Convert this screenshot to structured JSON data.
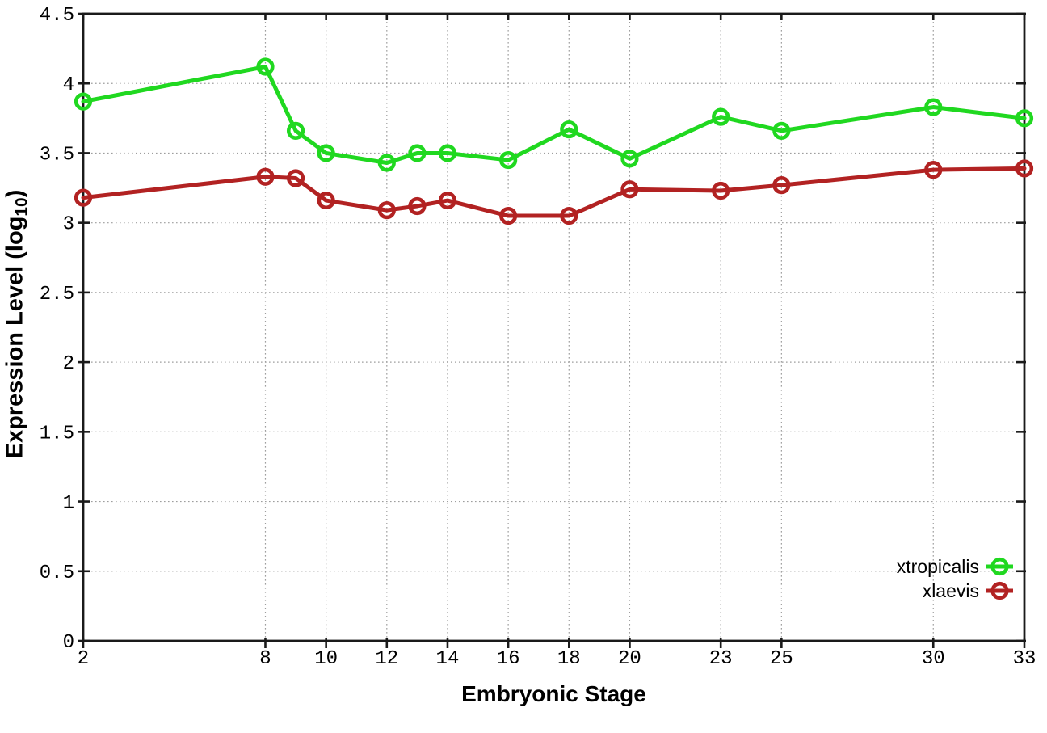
{
  "page": {
    "background": "#ffffff"
  },
  "chart_data": {
    "type": "line",
    "title": "",
    "xlabel": "Embryonic Stage",
    "ylabel": "Expression Level (log10)",
    "ylabel_parts": {
      "main": "Expression Level (log",
      "sub": "10",
      "close": ")"
    },
    "xlim": [
      2,
      33
    ],
    "ylim": [
      0,
      4.5
    ],
    "x": [
      2,
      8,
      9,
      10,
      12,
      13,
      14,
      16,
      18,
      20,
      23,
      25,
      30,
      33
    ],
    "xticks": [
      2,
      8,
      10,
      12,
      14,
      16,
      18,
      20,
      23,
      25,
      30,
      33
    ],
    "xtick_labels": [
      "2",
      "8",
      "10",
      "12",
      "14",
      "16",
      "18",
      "20",
      "23",
      "25",
      "30",
      "33"
    ],
    "yticks": [
      0,
      0.5,
      1,
      1.5,
      2,
      2.5,
      3,
      3.5,
      4,
      4.5
    ],
    "ytick_labels": [
      "0",
      "0.5",
      "1",
      "1.5",
      "2",
      "2.5",
      "3",
      "3.5",
      "4",
      "4.5"
    ],
    "grid": true,
    "legend_position": "inside-bottom-right",
    "series": [
      {
        "name": "xtropicalis",
        "color": "#20d820",
        "values": [
          3.87,
          4.12,
          3.66,
          3.5,
          3.43,
          3.5,
          3.5,
          3.45,
          3.67,
          3.46,
          3.76,
          3.66,
          3.83,
          3.75
        ]
      },
      {
        "name": "xlaevis",
        "color": "#b22222",
        "values": [
          3.18,
          3.33,
          3.32,
          3.16,
          3.09,
          3.12,
          3.16,
          3.05,
          3.05,
          3.24,
          3.23,
          3.27,
          3.38,
          3.39
        ]
      }
    ],
    "style": {
      "grid_color": "#9e9e9e",
      "axis_color": "#1a1a1a",
      "text_color": "#000000",
      "background": "#ffffff"
    }
  }
}
